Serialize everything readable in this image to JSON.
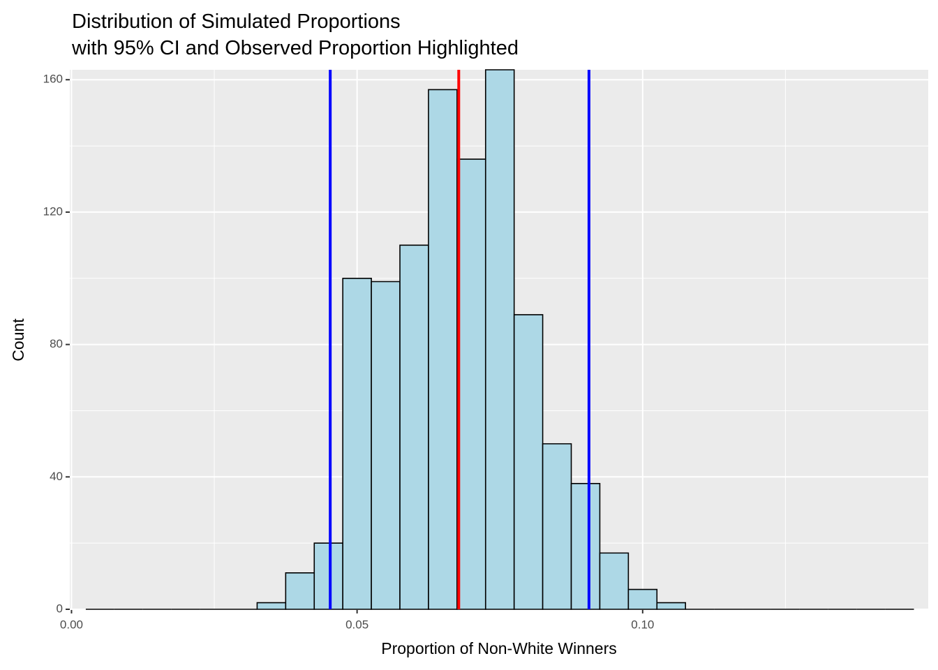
{
  "chart_data": {
    "type": "histogram",
    "title": "Distribution of Simulated Proportions",
    "subtitle": "with 95% CI and Observed Proportion Highlighted",
    "x_label": "Proportion of Non-White Winners",
    "y_label": "Count",
    "bins": [
      0.0025,
      0.0075,
      0.0125,
      0.0175,
      0.0225,
      0.0275,
      0.0325,
      0.0375,
      0.0425,
      0.0475,
      0.0525,
      0.0575,
      0.0625,
      0.0675,
      0.0725,
      0.0775,
      0.0825,
      0.0875,
      0.0925,
      0.0975,
      0.1025,
      0.1075,
      0.1125,
      0.1175,
      0.1225,
      0.1275,
      0.1325,
      0.1375,
      0.1425,
      0.1475
    ],
    "values": [
      0,
      0,
      0,
      0,
      0,
      0,
      2,
      11,
      20,
      100,
      99,
      110,
      157,
      136,
      163,
      89,
      50,
      38,
      17,
      6,
      2,
      0,
      0,
      0,
      0,
      0,
      0,
      0,
      0
    ],
    "color": "#add8e6",
    "edge_color": "#000000",
    "vlines": [
      {
        "value": 0.0453,
        "color": "#0000ff"
      },
      {
        "value": 0.0678,
        "color": "#ff0000"
      },
      {
        "value": 0.0906,
        "color": "#0000ff"
      }
    ],
    "xlim": [
      -0.0003,
      0.15
    ],
    "ylim": [
      0,
      163
    ],
    "xticks": [
      {
        "value": 0,
        "label": "0.00"
      },
      0.05,
      {
        "value": 0.1,
        "label": "0.10"
      }
    ],
    "yticks": [
      0,
      40,
      80,
      120,
      160
    ],
    "x_minor_grid": [
      0.025,
      0.075,
      0.125
    ],
    "y_minor_grid": [
      20,
      60,
      100,
      140
    ],
    "grid": true
  }
}
